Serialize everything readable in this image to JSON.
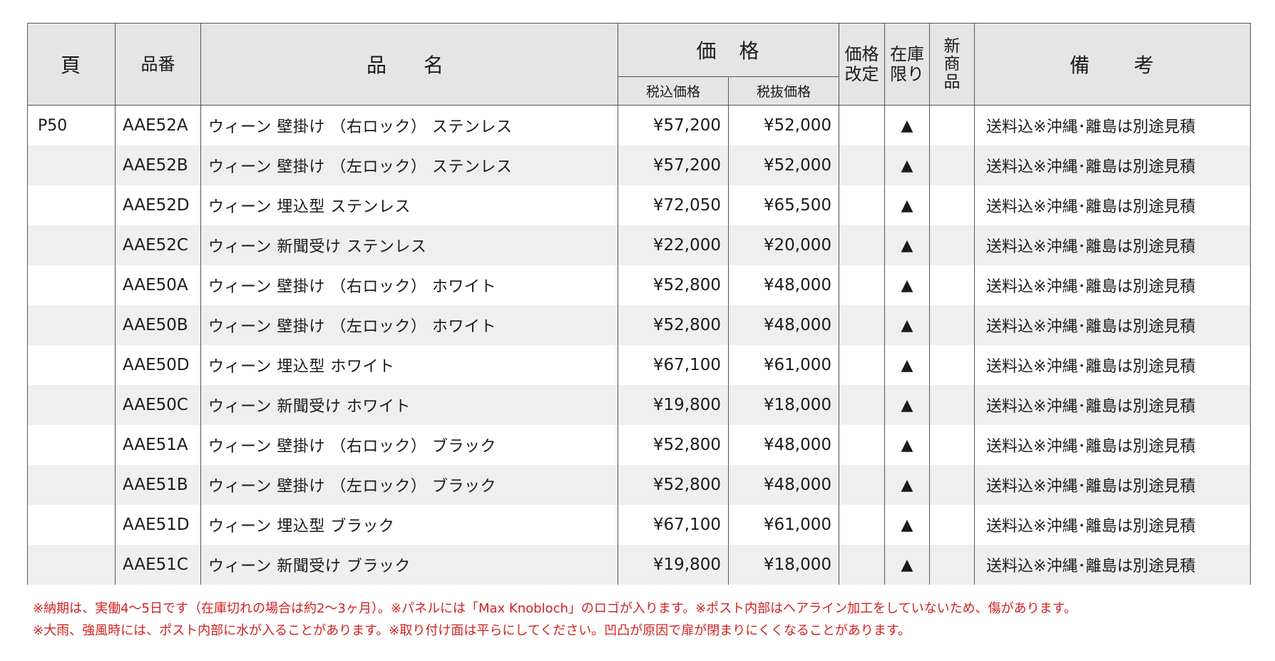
{
  "headers": {
    "page": "頁",
    "code": "品番",
    "name": "品　名",
    "price": "価　格",
    "price_tax_in": "税込価格",
    "price_tax_ex": "税抜価格",
    "price_change": [
      "価格",
      "改定"
    ],
    "stock_limited": [
      "在庫",
      "限り"
    ],
    "new_product": [
      "新",
      "商",
      "品"
    ],
    "remarks": "備　　考"
  },
  "rows": [
    {
      "page": "P50",
      "code": "AAE52A",
      "name": "ウィーン 壁掛け （右ロック） ステンレス",
      "tax_in": "¥57,200",
      "tax_ex": "¥52,000",
      "change": "",
      "stock": "▲",
      "new": "",
      "note": "送料込※沖縄･離島は別途見積"
    },
    {
      "page": "",
      "code": "AAE52B",
      "name": "ウィーン 壁掛け （左ロック） ステンレス",
      "tax_in": "¥57,200",
      "tax_ex": "¥52,000",
      "change": "",
      "stock": "▲",
      "new": "",
      "note": "送料込※沖縄･離島は別途見積"
    },
    {
      "page": "",
      "code": "AAE52D",
      "name": "ウィーン 埋込型 ステンレス",
      "tax_in": "¥72,050",
      "tax_ex": "¥65,500",
      "change": "",
      "stock": "▲",
      "new": "",
      "note": "送料込※沖縄･離島は別途見積"
    },
    {
      "page": "",
      "code": "AAE52C",
      "name": "ウィーン 新聞受け ステンレス",
      "tax_in": "¥22,000",
      "tax_ex": "¥20,000",
      "change": "",
      "stock": "▲",
      "new": "",
      "note": "送料込※沖縄･離島は別途見積"
    },
    {
      "page": "",
      "code": "AAE50A",
      "name": "ウィーン 壁掛け （右ロック） ホワイト",
      "tax_in": "¥52,800",
      "tax_ex": "¥48,000",
      "change": "",
      "stock": "▲",
      "new": "",
      "note": "送料込※沖縄･離島は別途見積"
    },
    {
      "page": "",
      "code": "AAE50B",
      "name": "ウィーン 壁掛け （左ロック） ホワイト",
      "tax_in": "¥52,800",
      "tax_ex": "¥48,000",
      "change": "",
      "stock": "▲",
      "new": "",
      "note": "送料込※沖縄･離島は別途見積"
    },
    {
      "page": "",
      "code": "AAE50D",
      "name": "ウィーン 埋込型 ホワイト",
      "tax_in": "¥67,100",
      "tax_ex": "¥61,000",
      "change": "",
      "stock": "▲",
      "new": "",
      "note": "送料込※沖縄･離島は別途見積"
    },
    {
      "page": "",
      "code": "AAE50C",
      "name": "ウィーン 新聞受け ホワイト",
      "tax_in": "¥19,800",
      "tax_ex": "¥18,000",
      "change": "",
      "stock": "▲",
      "new": "",
      "note": "送料込※沖縄･離島は別途見積"
    },
    {
      "page": "",
      "code": "AAE51A",
      "name": "ウィーン 壁掛け （右ロック） ブラック",
      "tax_in": "¥52,800",
      "tax_ex": "¥48,000",
      "change": "",
      "stock": "▲",
      "new": "",
      "note": "送料込※沖縄･離島は別途見積"
    },
    {
      "page": "",
      "code": "AAE51B",
      "name": "ウィーン 壁掛け （左ロック） ブラック",
      "tax_in": "¥52,800",
      "tax_ex": "¥48,000",
      "change": "",
      "stock": "▲",
      "new": "",
      "note": "送料込※沖縄･離島は別途見積"
    },
    {
      "page": "",
      "code": "AAE51D",
      "name": "ウィーン 埋込型 ブラック",
      "tax_in": "¥67,100",
      "tax_ex": "¥61,000",
      "change": "",
      "stock": "▲",
      "new": "",
      "note": "送料込※沖縄･離島は別途見積"
    },
    {
      "page": "",
      "code": "AAE51C",
      "name": "ウィーン 新聞受け ブラック",
      "tax_in": "¥19,800",
      "tax_ex": "¥18,000",
      "change": "",
      "stock": "▲",
      "new": "",
      "note": "送料込※沖縄･離島は別途見積"
    }
  ],
  "notes": [
    "※納期は、実働4〜5日です（在庫切れの場合は約2〜3ヶ月）。※パネルには「Max Knobloch」のロゴが入ります。※ポスト内部はヘアライン加工をしていないため、傷があります。",
    "※大雨、強風時には、ポスト内部に水が入ることがあります。※取り付け面は平らにしてください。凹凸が原因で扉が閉まりにくくなることがあります。"
  ],
  "colors": {
    "header_bg": "#e5e5e5",
    "stripe_bg": "#efefef",
    "note_text": "#d42020",
    "border": "#555555"
  }
}
